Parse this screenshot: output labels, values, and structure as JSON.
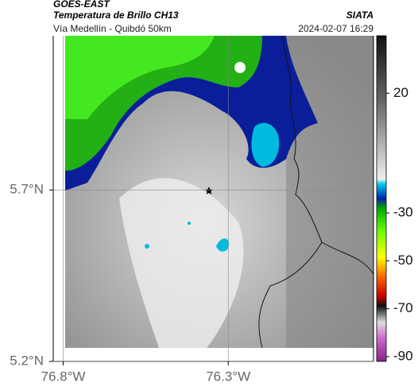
{
  "header": {
    "title": "GOES-EAST",
    "subtitle": "Temperatura de Brillo CH13",
    "source": "SIATA",
    "route": "Vía Medellín - Quibdó 50km",
    "timestamp": "2024-02-07 16:29"
  },
  "map": {
    "xlim": [
      -76.83,
      -75.86
    ],
    "ylim": [
      5.2,
      6.15
    ],
    "xticks": [
      {
        "value": -76.8,
        "label": "76.8°W"
      },
      {
        "value": -76.3,
        "label": "76.3°W"
      }
    ],
    "yticks": [
      {
        "value": 5.7,
        "label": "5.7°N"
      },
      {
        "value": 5.2,
        "label": "5.2°N"
      }
    ]
  },
  "colorbar": {
    "lim": [
      -92,
      44
    ],
    "ticks": [
      20,
      -30,
      -50,
      -70,
      -90
    ]
  }
}
